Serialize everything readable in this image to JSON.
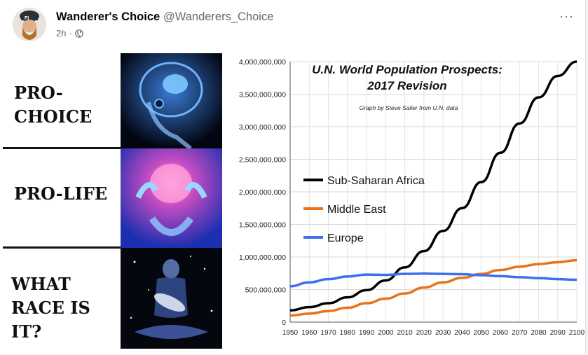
{
  "post": {
    "author_name": "Wanderer's Choice",
    "author_handle": "@Wanderers_Choice",
    "timestamp": "2h",
    "audience_icon": "globe-icon",
    "more_label": "···"
  },
  "meme": {
    "panels": [
      {
        "text": "PRO-CHOICE"
      },
      {
        "text": "PRO-LIFE"
      },
      {
        "text": "WHAT RACE IS IT?"
      }
    ]
  },
  "chart_data": {
    "type": "line",
    "title": "U.N. World Population Prospects: 2017 Revision",
    "subtitle": "Graph by Steve Sailer from U.N. data",
    "xlabel": "",
    "ylabel": "",
    "xlim": [
      1950,
      2100
    ],
    "ylim": [
      0,
      4000000000
    ],
    "x_ticks": [
      1950,
      1960,
      1970,
      1980,
      1990,
      2000,
      2010,
      2020,
      2030,
      2040,
      2050,
      2060,
      2070,
      2080,
      2090,
      2100
    ],
    "y_tick_labels": [
      "0",
      "500,000,000",
      "1,000,000,000",
      "1,500,000,000",
      "2,000,000,000",
      "2,500,000,000",
      "3,000,000,000",
      "3,500,000,000",
      "4,000,000,000"
    ],
    "y_ticks": [
      0,
      500000000,
      1000000000,
      1500000000,
      2000000000,
      2500000000,
      3000000000,
      3500000000,
      4000000000
    ],
    "grid": true,
    "legend_position": "left-middle",
    "x": [
      1950,
      1960,
      1970,
      1980,
      1990,
      2000,
      2010,
      2020,
      2030,
      2040,
      2050,
      2060,
      2070,
      2080,
      2090,
      2100
    ],
    "series": [
      {
        "name": "Sub-Saharan Africa",
        "color": "#000000",
        "values": [
          180000000,
          230000000,
          290000000,
          380000000,
          490000000,
          640000000,
          840000000,
          1090000000,
          1400000000,
          1750000000,
          2150000000,
          2600000000,
          3050000000,
          3450000000,
          3780000000,
          4000000000
        ]
      },
      {
        "name": "Middle East",
        "color": "#e8731c",
        "values": [
          100000000,
          130000000,
          170000000,
          220000000,
          290000000,
          360000000,
          440000000,
          530000000,
          610000000,
          680000000,
          740000000,
          800000000,
          850000000,
          890000000,
          920000000,
          950000000
        ]
      },
      {
        "name": "Europe",
        "color": "#3d6ff0",
        "values": [
          550000000,
          610000000,
          660000000,
          700000000,
          730000000,
          725000000,
          740000000,
          745000000,
          740000000,
          735000000,
          720000000,
          705000000,
          690000000,
          675000000,
          660000000,
          650000000
        ]
      }
    ]
  }
}
